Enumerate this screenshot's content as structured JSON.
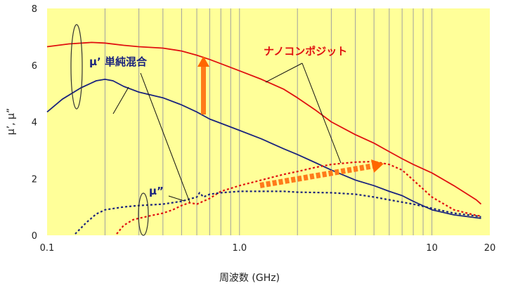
{
  "chart_data": {
    "type": "line",
    "title": "",
    "xlabel": "周波数 (GHz)",
    "ylabel": "μ’, μ”",
    "x_scale": "log",
    "xlim": [
      0.1,
      20
    ],
    "ylim": [
      0,
      8
    ],
    "x_ticks": [
      {
        "value": 0.1,
        "label": "0.1"
      },
      {
        "value": 1.0,
        "label": "1.0"
      },
      {
        "value": 10,
        "label": "10"
      },
      {
        "value": 20,
        "label": "20"
      }
    ],
    "y_ticks": [
      {
        "value": 0,
        "label": "0"
      },
      {
        "value": 2,
        "label": "2"
      },
      {
        "value": 4,
        "label": "4"
      },
      {
        "value": 6,
        "label": "6"
      },
      {
        "value": 8,
        "label": "8"
      }
    ],
    "grid": {
      "vertical_log_minor": true,
      "horizontal": false
    },
    "plot_background": "#ffff99",
    "series": [
      {
        "color": "#e01010",
        "style": "solid",
        "points": [
          [
            0.1,
            6.65
          ],
          [
            0.13,
            6.75
          ],
          [
            0.17,
            6.8
          ],
          [
            0.2,
            6.78
          ],
          [
            0.25,
            6.7
          ],
          [
            0.3,
            6.65
          ],
          [
            0.4,
            6.6
          ],
          [
            0.5,
            6.5
          ],
          [
            0.6,
            6.35
          ],
          [
            0.7,
            6.2
          ],
          [
            0.8,
            6.05
          ],
          [
            1.0,
            5.8
          ],
          [
            1.3,
            5.5
          ],
          [
            1.7,
            5.15
          ],
          [
            2.0,
            4.85
          ],
          [
            2.5,
            4.4
          ],
          [
            3.0,
            4.0
          ],
          [
            4.0,
            3.55
          ],
          [
            5.0,
            3.25
          ],
          [
            6.0,
            2.95
          ],
          [
            7.0,
            2.7
          ],
          [
            8.0,
            2.5
          ],
          [
            10,
            2.2
          ],
          [
            13,
            1.75
          ],
          [
            17,
            1.25
          ],
          [
            18,
            1.1
          ]
        ]
      },
      {
        "color": "#1a237e",
        "style": "solid",
        "points": [
          [
            0.1,
            4.35
          ],
          [
            0.12,
            4.8
          ],
          [
            0.15,
            5.2
          ],
          [
            0.18,
            5.45
          ],
          [
            0.2,
            5.5
          ],
          [
            0.22,
            5.45
          ],
          [
            0.25,
            5.25
          ],
          [
            0.3,
            5.05
          ],
          [
            0.4,
            4.85
          ],
          [
            0.5,
            4.6
          ],
          [
            0.6,
            4.35
          ],
          [
            0.7,
            4.1
          ],
          [
            0.8,
            3.95
          ],
          [
            1.0,
            3.7
          ],
          [
            1.3,
            3.4
          ],
          [
            1.7,
            3.05
          ],
          [
            2.0,
            2.85
          ],
          [
            2.5,
            2.55
          ],
          [
            3.0,
            2.3
          ],
          [
            4.0,
            1.95
          ],
          [
            5.0,
            1.75
          ],
          [
            6.0,
            1.55
          ],
          [
            7.0,
            1.4
          ],
          [
            8.0,
            1.2
          ],
          [
            10,
            0.9
          ],
          [
            13,
            0.72
          ],
          [
            17,
            0.62
          ],
          [
            18,
            0.6
          ]
        ]
      },
      {
        "color": "#e01010",
        "style": "dotted",
        "points": [
          [
            0.23,
            0.05
          ],
          [
            0.25,
            0.35
          ],
          [
            0.28,
            0.55
          ],
          [
            0.3,
            0.6
          ],
          [
            0.35,
            0.7
          ],
          [
            0.4,
            0.78
          ],
          [
            0.45,
            0.9
          ],
          [
            0.5,
            1.05
          ],
          [
            0.55,
            1.15
          ],
          [
            0.6,
            1.1
          ],
          [
            0.7,
            1.3
          ],
          [
            0.8,
            1.55
          ],
          [
            1.0,
            1.75
          ],
          [
            1.3,
            1.95
          ],
          [
            1.7,
            2.15
          ],
          [
            2.0,
            2.25
          ],
          [
            2.5,
            2.4
          ],
          [
            3.0,
            2.5
          ],
          [
            4.0,
            2.58
          ],
          [
            5.0,
            2.6
          ],
          [
            6.0,
            2.5
          ],
          [
            7.0,
            2.3
          ],
          [
            8.0,
            1.95
          ],
          [
            10,
            1.35
          ],
          [
            13,
            0.9
          ],
          [
            17,
            0.7
          ],
          [
            18,
            0.68
          ]
        ]
      },
      {
        "color": "#1a237e",
        "style": "dotted",
        "points": [
          [
            0.14,
            0.05
          ],
          [
            0.16,
            0.45
          ],
          [
            0.18,
            0.75
          ],
          [
            0.2,
            0.9
          ],
          [
            0.25,
            1.0
          ],
          [
            0.3,
            1.05
          ],
          [
            0.4,
            1.1
          ],
          [
            0.5,
            1.2
          ],
          [
            0.6,
            1.35
          ],
          [
            0.62,
            1.5
          ],
          [
            0.65,
            1.35
          ],
          [
            0.7,
            1.45
          ],
          [
            0.8,
            1.5
          ],
          [
            1.0,
            1.55
          ],
          [
            1.3,
            1.55
          ],
          [
            1.7,
            1.55
          ],
          [
            2.0,
            1.52
          ],
          [
            3.0,
            1.5
          ],
          [
            4.0,
            1.45
          ],
          [
            5.0,
            1.35
          ],
          [
            6.0,
            1.25
          ],
          [
            8.0,
            1.1
          ],
          [
            10,
            0.95
          ],
          [
            13,
            0.78
          ],
          [
            17,
            0.68
          ],
          [
            18,
            0.65
          ]
        ]
      }
    ],
    "annotations": [
      {
        "text": "μ’  単純混合",
        "color": "#1a237e"
      },
      {
        "text": "ナノコンポジット",
        "color": "#e01010"
      },
      {
        "text": "μ”",
        "color": "#1a237e"
      }
    ]
  }
}
